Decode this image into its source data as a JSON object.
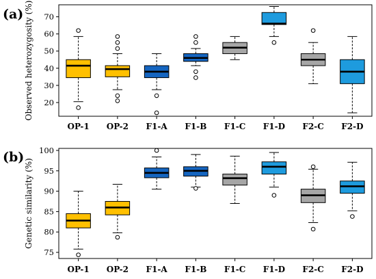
{
  "chart_data": [
    {
      "type": "box",
      "panel_label": "(a)",
      "ylabel": "Observed heterozygosity (%)",
      "ylim": [
        12,
        77
      ],
      "yticks": [
        20,
        30,
        40,
        50,
        60,
        70
      ],
      "categories": [
        "OP-1",
        "OP-2",
        "F1-A",
        "F1-B",
        "F1-C",
        "F1-D",
        "F2-C",
        "F2-D"
      ],
      "boxes": [
        {
          "min": 20.5,
          "q1": 34.5,
          "median": 41.5,
          "q3": 45,
          "max": 58.5,
          "outliers": [
            62,
            17
          ],
          "color": "#FFC000"
        },
        {
          "min": 27.5,
          "q1": 35,
          "median": 39.5,
          "q3": 41.5,
          "max": 48.5,
          "outliers": [
            58.5,
            55,
            51.5,
            24,
            21
          ],
          "color": "#FFC000"
        },
        {
          "min": 27.5,
          "q1": 34.5,
          "median": 38,
          "q3": 41.5,
          "max": 48.5,
          "outliers": [
            24,
            14
          ],
          "color": "#1565C0"
        },
        {
          "min": 41.5,
          "q1": 44,
          "median": 46,
          "q3": 48.5,
          "max": 51.5,
          "outliers": [
            58.5,
            55,
            38,
            34.5
          ],
          "color": "#1565C0"
        },
        {
          "min": 45,
          "q1": 48.5,
          "median": 52,
          "q3": 55,
          "max": 58.5,
          "outliers": [],
          "color": "#A6A6A6"
        },
        {
          "min": 58.5,
          "q1": 65.5,
          "median": 66,
          "q3": 72.5,
          "max": 76,
          "outliers": [
            55
          ],
          "color": "#1E9BDE"
        },
        {
          "min": 31,
          "q1": 41.5,
          "median": 45,
          "q3": 48.5,
          "max": 55,
          "outliers": [
            62
          ],
          "color": "#A6A6A6"
        },
        {
          "min": 14,
          "q1": 31,
          "median": 38,
          "q3": 45,
          "max": 58.5,
          "outliers": [],
          "color": "#1E9BDE"
        }
      ]
    },
    {
      "type": "box",
      "panel_label": "(b)",
      "ylabel": "Genetic similarity (%)",
      "ylim": [
        73.5,
        100.5
      ],
      "yticks": [
        75,
        80,
        85,
        90,
        95,
        100
      ],
      "categories": [
        "OP-1",
        "OP-2",
        "F1-A",
        "F1-B",
        "F1-C",
        "F1-D",
        "F2-C",
        "F2-D"
      ],
      "boxes": [
        {
          "min": 75.8,
          "q1": 81,
          "median": 82.8,
          "q3": 84.5,
          "max": 90,
          "outliers": [
            74.4
          ],
          "color": "#FFC000"
        },
        {
          "min": 79.8,
          "q1": 84.2,
          "median": 86,
          "q3": 87.5,
          "max": 91.7,
          "outliers": [
            78.7
          ],
          "color": "#FFC000"
        },
        {
          "min": 90.5,
          "q1": 93.3,
          "median": 94.5,
          "q3": 95.7,
          "max": 98.4,
          "outliers": [
            100
          ],
          "color": "#1565C0"
        },
        {
          "min": 91,
          "q1": 93.7,
          "median": 95,
          "q3": 96,
          "max": 99,
          "outliers": [
            90.7
          ],
          "color": "#1565C0"
        },
        {
          "min": 87,
          "q1": 91.5,
          "median": 93.2,
          "q3": 94.2,
          "max": 98.6,
          "outliers": [],
          "color": "#A6A6A6"
        },
        {
          "min": 91,
          "q1": 94.2,
          "median": 96,
          "q3": 97.2,
          "max": 99.5,
          "outliers": [
            89
          ],
          "color": "#1E9BDE"
        },
        {
          "min": 82.3,
          "q1": 87.2,
          "median": 89,
          "q3": 90.5,
          "max": 95.4,
          "outliers": [
            96,
            80.7
          ],
          "color": "#A6A6A6"
        },
        {
          "min": 85.2,
          "q1": 89.5,
          "median": 91.2,
          "q3": 92.5,
          "max": 97.1,
          "outliers": [
            83.8
          ],
          "color": "#1E9BDE"
        }
      ]
    }
  ]
}
